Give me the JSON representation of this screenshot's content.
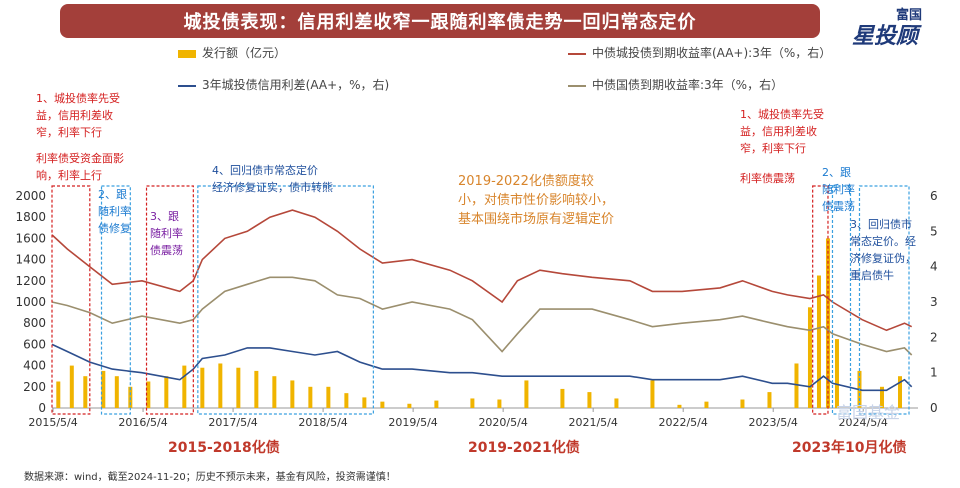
{
  "header": {
    "title": "城投债表现：信用利差收窄一跟随利率债走势一回归常态定价",
    "logo_top": "富国",
    "logo_main": "星投顾"
  },
  "annotations": {
    "a1": [
      "1、城投债率先受",
      "益，信用利差收",
      "窄，利率下行"
    ],
    "a1b": [
      "利率债受资金面影",
      "响，利率上行"
    ],
    "a2": [
      "2、跟",
      "随利率",
      "债修复"
    ],
    "a3": [
      "3、跟",
      "随利率",
      "债震荡"
    ],
    "a4": [
      "4、回归债市常态定价",
      "经济修复证实，债市转熊"
    ],
    "a5": [
      "2019-2022化债额度较",
      "小，对债市性价影响较小，",
      "基本围绕市场原有逻辑定价"
    ],
    "a6": [
      "1、城投债率先受",
      "益，信用利差收",
      "窄，利率下行"
    ],
    "a6b": [
      "利率债震荡"
    ],
    "a7": [
      "2、跟",
      "随利率",
      "债震荡"
    ],
    "a8": [
      "3、回归债市",
      "常态定价。经",
      "济修复证伪，",
      "重启债牛"
    ]
  },
  "eras": {
    "e1": "2015-2018化债",
    "e2": "2019-2021化债",
    "e3": "2023年10月化债"
  },
  "footer": "数据来源：wind，截至2024-11-20；历史不预示未来，基金有风险，投资需谨慎！",
  "watermark": "富国基金",
  "colors": {
    "issuance": "#f0b400",
    "yield_aa": "#b5483a",
    "spread": "#2d4f8e",
    "treasury": "#9b8f6e",
    "annotation_red": "#d42020",
    "box_red": "#d42020",
    "box_blue": "#3aa0e0"
  },
  "chart_data": {
    "type": "bar+line",
    "x_ticks": [
      "2015/5/4",
      "2016/5/4",
      "2017/5/4",
      "2018/5/4",
      "2019/5/4",
      "2020/5/4",
      "2021/5/4",
      "2022/5/4",
      "2023/5/4",
      "2024/5/4"
    ],
    "left_axis": {
      "ticks": [
        0,
        200,
        400,
        600,
        800,
        1000,
        1200,
        1400,
        1600,
        1800,
        2000
      ],
      "range": [
        0,
        2000
      ]
    },
    "right_axis": {
      "ticks": [
        0,
        1,
        2,
        3,
        4,
        5,
        6
      ],
      "range": [
        0,
        6
      ]
    },
    "legend": [
      {
        "key": "issuance",
        "label": "发行额（亿元）"
      },
      {
        "key": "yield_aa",
        "label": "中债城投债到期收益率(AA+):3年（%，右）"
      },
      {
        "key": "spread",
        "label": "3年城投债信用利差(AA+，%，右)"
      },
      {
        "key": "treasury",
        "label": "中债国债到期收益率:3年（%，右）"
      }
    ],
    "series": [
      {
        "name": "中债城投债到期收益率(AA+):3年（%，右）",
        "axis": "right",
        "x": [
          2015.33,
          2015.5,
          2015.75,
          2016.0,
          2016.33,
          2016.75,
          2016.9,
          2017.0,
          2017.25,
          2017.5,
          2017.75,
          2018.0,
          2018.25,
          2018.5,
          2018.75,
          2019.0,
          2019.33,
          2019.75,
          2020.0,
          2020.33,
          2020.5,
          2020.75,
          2021.0,
          2021.33,
          2021.75,
          2022.0,
          2022.33,
          2022.75,
          2023.0,
          2023.33,
          2023.5,
          2023.75,
          2023.9,
          2024.0,
          2024.33,
          2024.6,
          2024.8,
          2024.88
        ],
        "y": [
          4.9,
          4.5,
          4.0,
          3.5,
          3.6,
          3.3,
          3.6,
          4.2,
          4.8,
          5.0,
          5.4,
          5.6,
          5.4,
          5.0,
          4.5,
          4.1,
          4.2,
          3.9,
          3.6,
          3.0,
          3.6,
          3.9,
          3.8,
          3.7,
          3.6,
          3.3,
          3.3,
          3.4,
          3.6,
          3.3,
          3.2,
          3.1,
          3.2,
          3.0,
          2.5,
          2.2,
          2.4,
          2.3
        ]
      },
      {
        "name": "中债国债到期收益率:3年（%，右）",
        "axis": "right",
        "x": [
          2015.33,
          2015.5,
          2015.75,
          2016.0,
          2016.33,
          2016.75,
          2016.9,
          2017.0,
          2017.25,
          2017.5,
          2017.75,
          2018.0,
          2018.25,
          2018.5,
          2018.75,
          2019.0,
          2019.33,
          2019.75,
          2020.0,
          2020.33,
          2020.5,
          2020.75,
          2021.0,
          2021.33,
          2021.75,
          2022.0,
          2022.33,
          2022.75,
          2023.0,
          2023.33,
          2023.5,
          2023.75,
          2023.9,
          2024.0,
          2024.33,
          2024.6,
          2024.8,
          2024.88
        ],
        "y": [
          3.0,
          2.9,
          2.7,
          2.4,
          2.6,
          2.4,
          2.5,
          2.8,
          3.3,
          3.5,
          3.7,
          3.7,
          3.6,
          3.2,
          3.1,
          2.8,
          3.0,
          2.8,
          2.5,
          1.6,
          2.1,
          2.8,
          2.8,
          2.8,
          2.5,
          2.3,
          2.4,
          2.5,
          2.6,
          2.4,
          2.3,
          2.2,
          2.3,
          2.1,
          1.8,
          1.6,
          1.7,
          1.5
        ]
      },
      {
        "name": "3年城投债信用利差(AA+，%，右)",
        "axis": "right",
        "x": [
          2015.33,
          2015.5,
          2015.75,
          2016.0,
          2016.33,
          2016.75,
          2016.9,
          2017.0,
          2017.25,
          2017.5,
          2017.75,
          2018.0,
          2018.25,
          2018.5,
          2018.75,
          2019.0,
          2019.33,
          2019.75,
          2020.0,
          2020.33,
          2020.5,
          2020.75,
          2021.0,
          2021.33,
          2021.75,
          2022.0,
          2022.33,
          2022.75,
          2023.0,
          2023.33,
          2023.5,
          2023.75,
          2023.9,
          2024.0,
          2024.33,
          2024.6,
          2024.8,
          2024.88
        ],
        "y": [
          1.8,
          1.6,
          1.3,
          1.1,
          1.0,
          0.8,
          1.1,
          1.4,
          1.5,
          1.7,
          1.7,
          1.6,
          1.5,
          1.6,
          1.3,
          1.1,
          1.1,
          1.0,
          1.0,
          0.9,
          0.9,
          0.9,
          0.9,
          0.9,
          0.9,
          0.8,
          0.8,
          0.8,
          0.9,
          0.7,
          0.7,
          0.6,
          0.9,
          0.7,
          0.5,
          0.5,
          0.8,
          0.6
        ]
      },
      {
        "name": "发行额（亿元）",
        "axis": "left",
        "x": [
          2015.4,
          2015.55,
          2015.7,
          2015.9,
          2016.05,
          2016.2,
          2016.4,
          2016.6,
          2016.8,
          2017.0,
          2017.2,
          2017.4,
          2017.6,
          2017.8,
          2018.0,
          2018.2,
          2018.4,
          2018.6,
          2018.8,
          2019.0,
          2019.3,
          2019.6,
          2020.0,
          2020.3,
          2020.6,
          2021.0,
          2021.3,
          2021.6,
          2022.0,
          2022.3,
          2022.6,
          2023.0,
          2023.3,
          2023.6,
          2023.75,
          2023.85,
          2023.95,
          2024.05,
          2024.3,
          2024.55,
          2024.75
        ],
        "y": [
          250,
          400,
          300,
          350,
          300,
          200,
          250,
          300,
          400,
          380,
          420,
          380,
          350,
          300,
          260,
          200,
          200,
          140,
          100,
          60,
          40,
          70,
          90,
          80,
          260,
          180,
          150,
          90,
          260,
          30,
          60,
          80,
          150,
          420,
          950,
          1250,
          1600,
          650,
          350,
          200,
          300
        ]
      }
    ],
    "boxes": [
      {
        "x0": 2015.33,
        "x1": 2015.75,
        "color": "red"
      },
      {
        "x0": 2015.88,
        "x1": 2016.2,
        "color": "blue"
      },
      {
        "x0": 2016.38,
        "x1": 2016.9,
        "color": "red"
      },
      {
        "x0": 2016.95,
        "x1": 2018.9,
        "color": "blue"
      },
      {
        "x0": 2023.78,
        "x1": 2023.95,
        "color": "red"
      },
      {
        "x0": 2024.0,
        "x1": 2024.2,
        "color": "blue"
      },
      {
        "x0": 2024.3,
        "x1": 2024.85,
        "color": "blue"
      }
    ]
  }
}
